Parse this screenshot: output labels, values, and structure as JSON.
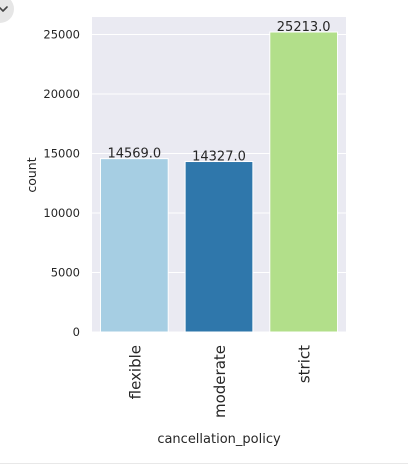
{
  "chart_data": {
    "type": "bar",
    "categories": [
      "flexible",
      "moderate",
      "strict"
    ],
    "values": [
      14569.0,
      14327.0,
      25213.0
    ],
    "value_labels": [
      "14569.0",
      "14327.0",
      "25213.0"
    ],
    "colors": [
      "#a6cee3",
      "#2f77ab",
      "#b2df8a"
    ],
    "xlabel": "cancellation_policy",
    "ylabel": "count",
    "yticks": [
      0,
      5000,
      10000,
      15000,
      20000,
      25000
    ],
    "ytick_labels": [
      "0",
      "5000",
      "10000",
      "15000",
      "20000",
      "25000"
    ],
    "ylim": [
      0,
      26473.65
    ],
    "grid": true,
    "plot_background": "#eaeaf2",
    "grid_color": "#ffffff"
  }
}
